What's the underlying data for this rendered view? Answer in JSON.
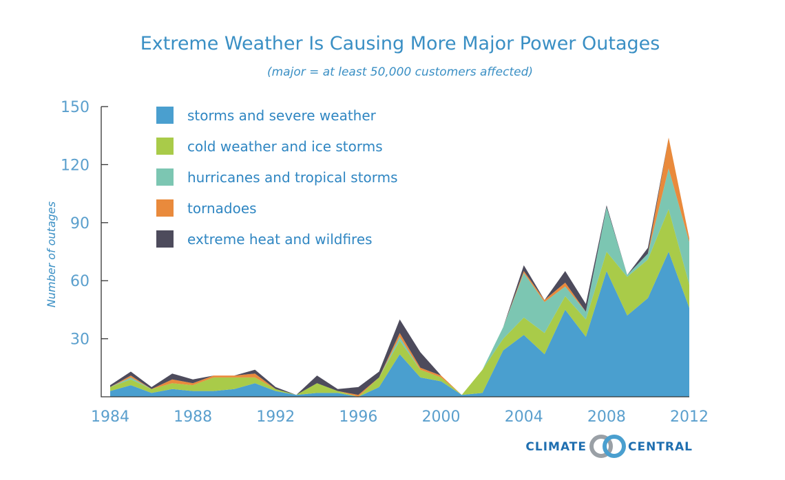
{
  "chart_data": {
    "type": "area",
    "stacked": true,
    "title": "Extreme Weather Is Causing More Major Power Outages",
    "subtitle": "(major = at least 50,000 customers affected)",
    "xlabel": "",
    "ylabel": "Number of outages",
    "xlim": [
      1984,
      2012
    ],
    "ylim": [
      0,
      150
    ],
    "x_ticks": [
      "1984",
      "1988",
      "1992",
      "1996",
      "2000",
      "2004",
      "2008",
      "2012"
    ],
    "y_ticks": [
      "30",
      "60",
      "90",
      "120",
      "150"
    ],
    "grid": false,
    "legend_position": "top-left",
    "x": [
      1984,
      1985,
      1986,
      1987,
      1988,
      1989,
      1990,
      1991,
      1992,
      1993,
      1994,
      1995,
      1996,
      1997,
      1998,
      1999,
      2000,
      2001,
      2002,
      2003,
      2004,
      2005,
      2006,
      2007,
      2008,
      2009,
      2010,
      2011,
      2012
    ],
    "series": [
      {
        "name": "storms and severe weather",
        "color": "#4a9fcf",
        "values": [
          3,
          6,
          2,
          4,
          3,
          3,
          4,
          7,
          3,
          1,
          2,
          2,
          0,
          5,
          22,
          10,
          8,
          1,
          2,
          24,
          32,
          22,
          45,
          31,
          65,
          42,
          51,
          75,
          46
        ]
      },
      {
        "name": "cold weather and ice storms",
        "color": "#a9cb49",
        "values": [
          2,
          3,
          2,
          3,
          3,
          7,
          6,
          3,
          1,
          0,
          5,
          1,
          0,
          5,
          7,
          4,
          2,
          0,
          12,
          6,
          9,
          11,
          7,
          9,
          10,
          20,
          20,
          22,
          12
        ]
      },
      {
        "name": "hurricanes and tropical storms",
        "color": "#7cc6b2",
        "values": [
          0,
          1,
          0,
          0,
          0,
          0,
          0,
          0,
          0,
          0,
          0,
          0,
          0,
          0,
          2,
          0,
          0,
          0,
          0,
          6,
          23,
          16,
          5,
          4,
          23,
          1,
          3,
          21,
          22
        ]
      },
      {
        "name": "tornadoes",
        "color": "#e98a3c",
        "values": [
          0,
          1,
          0,
          2,
          1,
          1,
          1,
          2,
          0,
          0,
          0,
          0,
          1,
          0,
          2,
          1,
          1,
          0,
          0,
          0,
          1,
          1,
          2,
          0,
          0,
          0,
          0,
          16,
          2
        ]
      },
      {
        "name": "extreme heat and wildfires",
        "color": "#4d4b5c",
        "values": [
          1,
          2,
          1,
          3,
          2,
          0,
          0,
          2,
          1,
          0,
          4,
          1,
          4,
          3,
          7,
          8,
          0,
          0,
          0,
          0,
          3,
          0,
          6,
          4,
          1,
          0,
          3,
          0,
          0
        ]
      }
    ]
  },
  "brand": {
    "left": "CLIMATE",
    "right": "CENTRAL"
  }
}
